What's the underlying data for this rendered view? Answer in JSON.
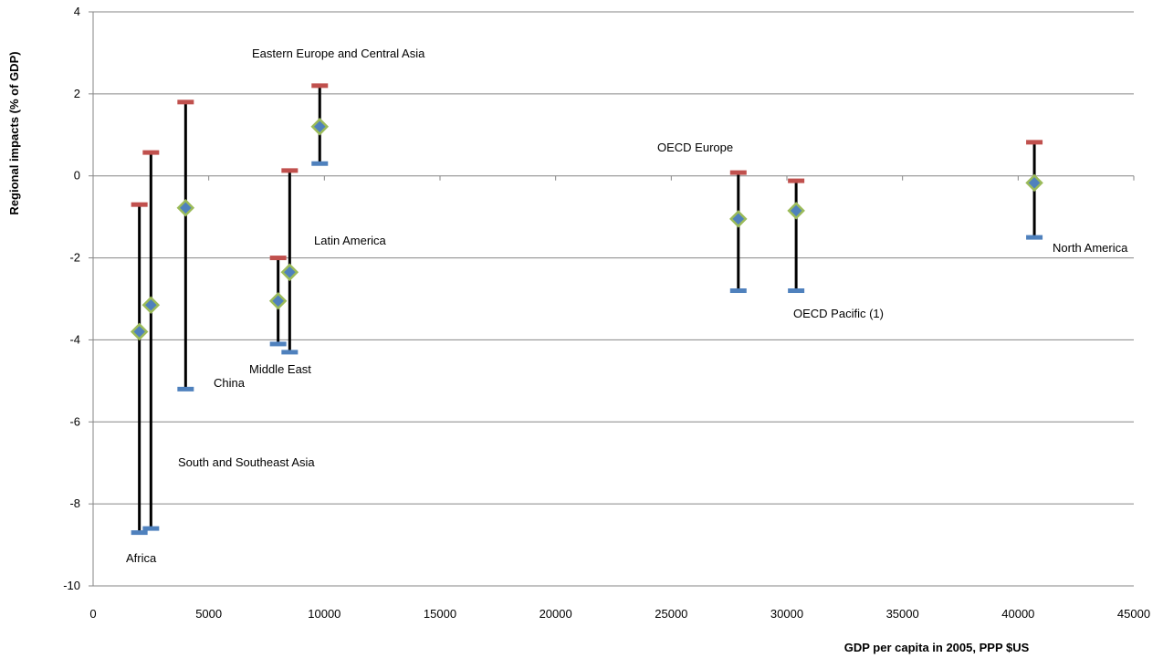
{
  "chart_data": {
    "type": "scatter",
    "xlabel": "GDP per capita in 2005, PPP $US",
    "ylabel": "Regional impacts (% of GDP)",
    "xlim": [
      0,
      45000
    ],
    "ylim": [
      -10,
      4
    ],
    "x_ticks": [
      0,
      5000,
      10000,
      15000,
      20000,
      25000,
      30000,
      35000,
      40000,
      45000
    ],
    "y_ticks": [
      -10,
      -8,
      -6,
      -4,
      -2,
      0,
      2,
      4
    ],
    "grid": "horizontal",
    "colors": {
      "high": "#c0504d",
      "low": "#4f81bd",
      "central_fill": "#4f81bd",
      "central_stroke": "#9bbb59",
      "whisker": "#000000",
      "grid": "#868686"
    },
    "regions": [
      {
        "name": "Africa",
        "x": 2000,
        "central": -3.8,
        "high": -0.7,
        "low": -8.7
      },
      {
        "name": "South and Southeast Asia",
        "x": 2500,
        "central": -3.15,
        "high": 0.57,
        "low": -8.6
      },
      {
        "name": "China",
        "x": 4000,
        "central": -0.78,
        "high": 1.8,
        "low": -5.2
      },
      {
        "name": "Middle East",
        "x": 8000,
        "central": -3.05,
        "high": -2.0,
        "low": -4.1
      },
      {
        "name": "Latin America",
        "x": 8500,
        "central": -2.35,
        "high": 0.13,
        "low": -4.3
      },
      {
        "name": "Eastern Europe and Central Asia",
        "x": 9800,
        "central": 1.2,
        "high": 2.2,
        "low": 0.3
      },
      {
        "name": "OECD Europe",
        "x": 27900,
        "central": -1.05,
        "high": 0.08,
        "low": -2.8
      },
      {
        "name": "OECD Pacific (1)",
        "x": 30400,
        "central": -0.85,
        "high": -0.12,
        "low": -2.8
      },
      {
        "name": "North America",
        "x": 40700,
        "central": -0.17,
        "high": 0.82,
        "low": -1.5
      }
    ]
  }
}
